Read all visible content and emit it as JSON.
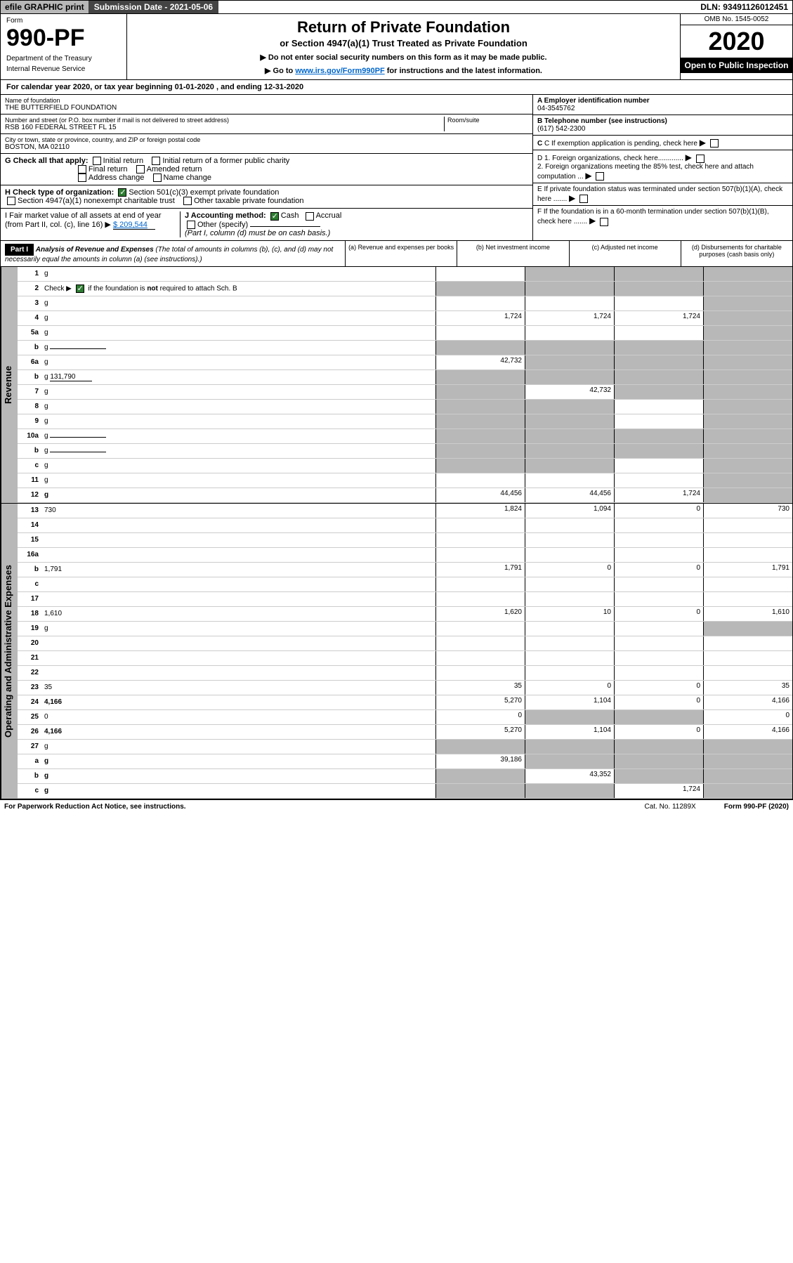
{
  "topbar": {
    "efile": "efile GRAPHIC print",
    "submission": "Submission Date - 2021-05-06",
    "dln": "DLN: 93491126012451"
  },
  "header": {
    "form_word": "Form",
    "form_number": "990-PF",
    "dept": "Department of the Treasury",
    "irs": "Internal Revenue Service",
    "title": "Return of Private Foundation",
    "subtitle": "or Section 4947(a)(1) Trust Treated as Private Foundation",
    "inst1": "▶ Do not enter social security numbers on this form as it may be made public.",
    "inst2_pre": "▶ Go to ",
    "inst2_link": "www.irs.gov/Form990PF",
    "inst2_post": " for instructions and the latest information.",
    "omb": "OMB No. 1545-0052",
    "year": "2020",
    "open": "Open to Public Inspection"
  },
  "calyear": {
    "text_pre": "For calendar year 2020, or tax year beginning ",
    "begin": "01-01-2020",
    "text_mid": " , and ending ",
    "end": "12-31-2020"
  },
  "info": {
    "name_label": "Name of foundation",
    "name": "THE BUTTERFIELD FOUNDATION",
    "addr_label": "Number and street (or P.O. box number if mail is not delivered to street address)",
    "addr": "RSB 160 FEDERAL STREET FL 15",
    "room_label": "Room/suite",
    "city_label": "City or town, state or province, country, and ZIP or foreign postal code",
    "city": "BOSTON, MA  02110",
    "ein_label": "A Employer identification number",
    "ein": "04-3545762",
    "phone_label": "B Telephone number (see instructions)",
    "phone": "(617) 542-2300",
    "c_label": "C If exemption application is pending, check here",
    "d1": "D 1. Foreign organizations, check here.............",
    "d2": "2. Foreign organizations meeting the 85% test, check here and attach computation ...",
    "e": "E  If private foundation status was terminated under section 507(b)(1)(A), check here .......",
    "f": "F  If the foundation is in a 60-month termination under section 507(b)(1)(B), check here .......",
    "g_label": "G Check all that apply:",
    "g_opts": [
      "Initial return",
      "Initial return of a former public charity",
      "Final return",
      "Amended return",
      "Address change",
      "Name change"
    ],
    "h_label": "H Check type of organization:",
    "h_opt1": "Section 501(c)(3) exempt private foundation",
    "h_opt2": "Section 4947(a)(1) nonexempt charitable trust",
    "h_opt3": "Other taxable private foundation",
    "i_label": "I Fair market value of all assets at end of year (from Part II, col. (c), line 16) ▶",
    "i_value": "$  209,544",
    "j_label": "J Accounting method:",
    "j_cash": "Cash",
    "j_accrual": "Accrual",
    "j_other": "Other (specify)",
    "j_note": "(Part I, column (d) must be on cash basis.)"
  },
  "part1": {
    "label": "Part I",
    "title": "Analysis of Revenue and Expenses",
    "note": " (The total of amounts in columns (b), (c), and (d) may not necessarily equal the amounts in column (a) (see instructions).)",
    "cols": {
      "a": "(a)  Revenue and expenses per books",
      "b": "(b)  Net investment income",
      "c": "(c)  Adjusted net income",
      "d": "(d)  Disbursements for charitable purposes (cash basis only)"
    }
  },
  "sections": {
    "revenue": "Revenue",
    "expenses": "Operating and Administrative Expenses"
  },
  "lines": [
    {
      "n": "1",
      "d": "g",
      "a": "",
      "b": "g",
      "c": "g"
    },
    {
      "n": "2",
      "d": "g",
      "a": "g",
      "b": "g",
      "c": "g",
      "checked": true
    },
    {
      "n": "3",
      "d": "g",
      "a": "",
      "b": "",
      "c": ""
    },
    {
      "n": "4",
      "d": "g",
      "a": "1,724",
      "b": "1,724",
      "c": "1,724"
    },
    {
      "n": "5a",
      "d": "g",
      "a": "",
      "b": "",
      "c": ""
    },
    {
      "n": "b",
      "d": "g",
      "a": "g",
      "b": "g",
      "c": "g",
      "inline_blank": true
    },
    {
      "n": "6a",
      "d": "g",
      "a": "42,732",
      "b": "g",
      "c": "g"
    },
    {
      "n": "b",
      "d": "g",
      "a": "g",
      "b": "g",
      "c": "g",
      "inline_val": "131,790"
    },
    {
      "n": "7",
      "d": "g",
      "a": "g",
      "b": "42,732",
      "c": "g"
    },
    {
      "n": "8",
      "d": "g",
      "a": "g",
      "b": "g",
      "c": ""
    },
    {
      "n": "9",
      "d": "g",
      "a": "g",
      "b": "g",
      "c": ""
    },
    {
      "n": "10a",
      "d": "g",
      "a": "g",
      "b": "g",
      "c": "g",
      "inline_blank": true
    },
    {
      "n": "b",
      "d": "g",
      "a": "g",
      "b": "g",
      "c": "g",
      "inline_blank": true
    },
    {
      "n": "c",
      "d": "g",
      "a": "g",
      "b": "g",
      "c": ""
    },
    {
      "n": "11",
      "d": "g",
      "a": "",
      "b": "",
      "c": ""
    },
    {
      "n": "12",
      "d": "g",
      "a": "44,456",
      "b": "44,456",
      "c": "1,724",
      "bold": true
    }
  ],
  "exp_lines": [
    {
      "n": "13",
      "d": "730",
      "a": "1,824",
      "b": "1,094",
      "c": "0"
    },
    {
      "n": "14",
      "d": "",
      "a": "",
      "b": "",
      "c": ""
    },
    {
      "n": "15",
      "d": "",
      "a": "",
      "b": "",
      "c": ""
    },
    {
      "n": "16a",
      "d": "",
      "a": "",
      "b": "",
      "c": ""
    },
    {
      "n": "b",
      "d": "1,791",
      "a": "1,791",
      "b": "0",
      "c": "0"
    },
    {
      "n": "c",
      "d": "",
      "a": "",
      "b": "",
      "c": ""
    },
    {
      "n": "17",
      "d": "",
      "a": "",
      "b": "",
      "c": ""
    },
    {
      "n": "18",
      "d": "1,610",
      "a": "1,620",
      "b": "10",
      "c": "0"
    },
    {
      "n": "19",
      "d": "g",
      "a": "",
      "b": "",
      "c": ""
    },
    {
      "n": "20",
      "d": "",
      "a": "",
      "b": "",
      "c": ""
    },
    {
      "n": "21",
      "d": "",
      "a": "",
      "b": "",
      "c": ""
    },
    {
      "n": "22",
      "d": "",
      "a": "",
      "b": "",
      "c": ""
    },
    {
      "n": "23",
      "d": "35",
      "a": "35",
      "b": "0",
      "c": "0"
    },
    {
      "n": "24",
      "d": "4,166",
      "a": "5,270",
      "b": "1,104",
      "c": "0",
      "bold": true
    },
    {
      "n": "25",
      "d": "0",
      "a": "0",
      "b": "g",
      "c": "g"
    },
    {
      "n": "26",
      "d": "4,166",
      "a": "5,270",
      "b": "1,104",
      "c": "0",
      "bold": true
    },
    {
      "n": "27",
      "d": "g",
      "a": "g",
      "b": "g",
      "c": "g"
    },
    {
      "n": "a",
      "d": "g",
      "a": "39,186",
      "b": "g",
      "c": "g",
      "bold": true
    },
    {
      "n": "b",
      "d": "g",
      "a": "g",
      "b": "43,352",
      "c": "g",
      "bold": true
    },
    {
      "n": "c",
      "d": "g",
      "a": "g",
      "b": "g",
      "c": "1,724",
      "bold": true
    }
  ],
  "footer": {
    "left": "For Paperwork Reduction Act Notice, see instructions.",
    "mid": "Cat. No. 11289X",
    "right": "Form 990-PF (2020)"
  }
}
